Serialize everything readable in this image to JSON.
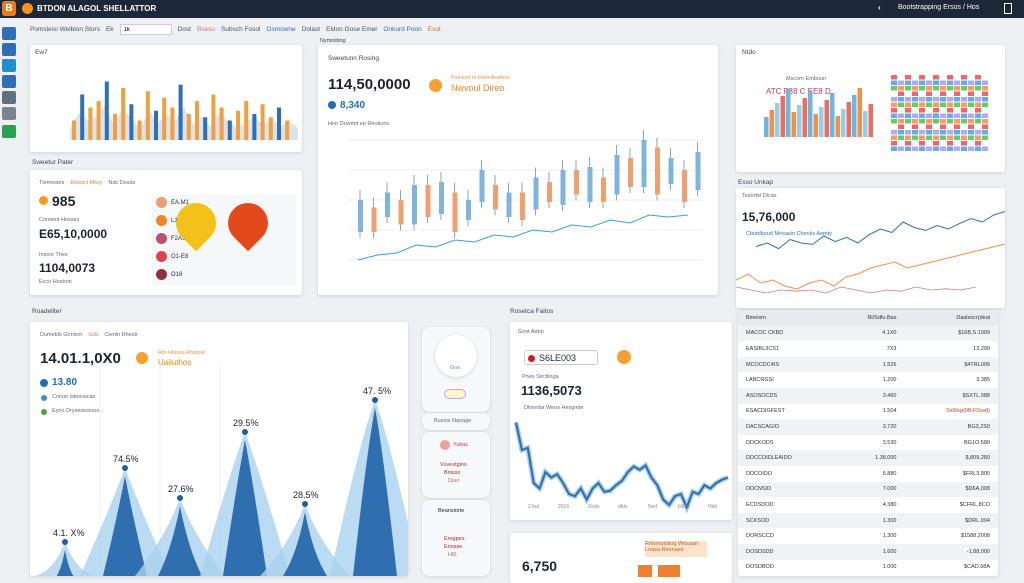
{
  "app": {
    "title": "BTDON ALAGOL SHELLATTOR",
    "user": "Bootstrapping Ersos / Hos",
    "logo": "B"
  },
  "toolbar": {
    "items": [
      "Pomsleisi Welbion Stors",
      "Ek"
    ],
    "input_value": "1k",
    "buttons": [
      "Dost",
      "Bsesu",
      "Subsch Fosol",
      "Osmowne",
      "Dolast",
      "Eldon Gose Emer",
      "Onkurd Poon",
      "Exot"
    ],
    "sub": "Nymistting"
  },
  "panel_bars": {
    "title": "Ew7",
    "bars": [
      0.3,
      0.7,
      0.5,
      0.6,
      0.9,
      0.4,
      0.8,
      0.55,
      0.3,
      0.75,
      0.45,
      0.65,
      0.5,
      0.85,
      0.4,
      0.6,
      0.35,
      0.7,
      0.5,
      0.3,
      0.45,
      0.6,
      0.4,
      0.55,
      0.35,
      0.5,
      0.3
    ],
    "colors": [
      "#f0a040",
      "#2f6fb8"
    ]
  },
  "wallet": {
    "section": "Sweetur Pater",
    "tabs": [
      "Tlemestes",
      "Etosscl Mksy",
      "Ndc Desds"
    ],
    "price1": "985",
    "label1": "Corwent Hosses",
    "price2": "E65,10,0000",
    "label2": "Inscre Thes",
    "price3": "1104,0073",
    "label3": "Ecco Hosbon",
    "coins": [
      {
        "name": "EA.M1",
        "alt": "",
        "color": "#e8a070"
      },
      {
        "name": "L1E.09",
        "alt": "",
        "color": "#f0842a"
      },
      {
        "name": "F2AS",
        "alt": "",
        "color": "#c05070"
      },
      {
        "name": "O1-E8",
        "alt": "Fa 01",
        "color": "#e04050"
      },
      {
        "name": "O16",
        "alt": "#P004",
        "color": "#903040"
      }
    ],
    "pins": [
      {
        "glyph": "I",
        "color": "#f2c21a"
      },
      {
        "glyph": "m",
        "color": "#e24a1c"
      }
    ]
  },
  "center": {
    "section": "Nymistting",
    "title": "Sweetunn Rosing",
    "price": "114,50,0000",
    "note1": "Fmcesn in Hosr Ansfers",
    "note2": "Nwvoul Direo",
    "sub": "8,340",
    "axis_label": "Hno Dowmd ep Reutions",
    "candles": [
      [
        0.3,
        0.5
      ],
      [
        0.45,
        0.3
      ],
      [
        0.4,
        0.55
      ],
      [
        0.5,
        0.35
      ],
      [
        0.35,
        0.6
      ],
      [
        0.6,
        0.4
      ],
      [
        0.42,
        0.62
      ],
      [
        0.55,
        0.3
      ],
      [
        0.38,
        0.5
      ],
      [
        0.5,
        0.7
      ],
      [
        0.6,
        0.45
      ],
      [
        0.4,
        0.55
      ],
      [
        0.55,
        0.38
      ],
      [
        0.45,
        0.65
      ],
      [
        0.62,
        0.5
      ],
      [
        0.48,
        0.7
      ],
      [
        0.7,
        0.55
      ],
      [
        0.5,
        0.72
      ],
      [
        0.65,
        0.5
      ],
      [
        0.55,
        0.8
      ],
      [
        0.78,
        0.6
      ],
      [
        0.6,
        0.9
      ],
      [
        0.85,
        0.55
      ],
      [
        0.62,
        0.78
      ],
      [
        0.7,
        0.5
      ],
      [
        0.58,
        0.82
      ]
    ],
    "trend": [
      0.15,
      0.2,
      0.22,
      0.3,
      0.28,
      0.35,
      0.33,
      0.4,
      0.38,
      0.45,
      0.43,
      0.5,
      0.48,
      0.55,
      0.52,
      0.6,
      0.58,
      0.6
    ]
  },
  "heat": {
    "title": "Ntdo",
    "subtitle": "Mscorn Emboun",
    "overlay": "ATC F38 C EE8 D"
  },
  "lines": {
    "section": "Esso Unkap",
    "title": "Tesorfel Dicas",
    "price": "15,76,000",
    "legend": "Cbutdboud Mosasin Chenks Aomty",
    "blue": [
      0.45,
      0.5,
      0.42,
      0.55,
      0.5,
      0.48,
      0.6,
      0.52,
      0.58,
      0.5,
      0.62,
      0.7,
      0.65,
      0.8,
      0.72,
      0.68,
      0.75,
      0.7,
      0.78,
      0.85,
      0.8,
      0.9,
      0.95
    ],
    "orange": [
      0.3,
      0.4,
      0.25,
      0.3,
      0.2,
      0.15,
      0.25,
      0.3,
      0.2,
      0.35,
      0.4,
      0.5,
      0.55,
      0.6,
      0.5,
      0.55,
      0.6,
      0.65,
      0.7,
      0.75,
      0.8,
      0.85,
      0.9
    ],
    "red": [
      0.35,
      0.3,
      0.25,
      0.3,
      0.28,
      0.3,
      0.25,
      0.35,
      0.3,
      0.25,
      0.3,
      0.28,
      0.35,
      0.3,
      0.32,
      0.3,
      0.35
    ]
  },
  "table": {
    "headers": [
      "Bmeism",
      "Ri/Sdfu.Bas",
      "Daslsocr(deal"
    ],
    "rows": [
      [
        "MACOC CKBD",
        "4.1X0",
        "$16B,S.1009"
      ],
      [
        "EASIBL3CS1",
        "7X3",
        "13,290"
      ],
      [
        "MCOCDC4IS",
        "1.526",
        "$4TRL006"
      ],
      [
        "LABCRGSI",
        "1.200",
        "3.385"
      ],
      [
        "ASOSOCDS",
        "3.460",
        "$SXTL.088"
      ],
      [
        "ESACDIGFEST",
        "1.504",
        "Sst0ep(0B,F0ssd)"
      ],
      [
        "DACSCAGIO",
        "3.720",
        "BG3,2S0"
      ],
      [
        "DDCKODS",
        "3.530",
        "BG1O.580"
      ],
      [
        "DDCCOIDLEAIDO",
        "1.38,000",
        "$,809,280"
      ],
      [
        "DDCOIDO",
        "5.880",
        "$FRL3,800"
      ],
      [
        "DDCNSID",
        "7.000",
        "$D6A,008"
      ],
      [
        "ECDSDOD",
        "4.380",
        "$CFRL,8CO"
      ],
      [
        "SCKSOD",
        "1.300",
        "$DRL.004"
      ],
      [
        "DORSCCD",
        "1.300",
        "$1588,2008"
      ],
      [
        "DOSDSDD",
        "1.600",
        "-1,88,000"
      ],
      [
        "DOSDBOD",
        "1.000",
        "$CAD.68A"
      ]
    ],
    "highlight_row": 5
  },
  "mountain": {
    "section": "Roadeliter",
    "tabs": [
      "Dumebls Gonlsm",
      "Gsb",
      "Cemln Rhestr"
    ],
    "price": "14.01.1,0X0",
    "note1": "Rtn Hnisss Rhstnal",
    "note2": "Uailuthos",
    "sub": "13.80",
    "leg1": "Corsst Iskonaicas",
    "leg2": "Eyno Drysesesiono",
    "peaks": [
      {
        "label": "4.1. X%",
        "v": 0.05
      },
      {
        "label": "74.5%",
        "v": 0.42
      },
      {
        "label": "27.6%",
        "v": 0.27
      },
      {
        "label": "29.5%",
        "v": 0.6
      },
      {
        "label": "28.5%",
        "v": 0.24
      },
      {
        "label": "47. 5%",
        "v": 0.76
      }
    ]
  },
  "mini": {
    "card1": "Gos",
    "card2": "Busins Nanage",
    "card3_title": "Yukas",
    "card3_lines": [
      "Vuvestgins",
      "Bnisss",
      "Dser"
    ],
    "card4_title": "Beansiorte",
    "card4_lines": [
      "Eregpes",
      "Enosse",
      "Ht5"
    ]
  },
  "spark": {
    "section": "Rosetca Faitos",
    "title": "Gost Adep",
    "badge": "S6LE003",
    "label": "Pnes Sirctlinga",
    "price": "1136,5073",
    "note": "Dlonnba Weos Hesgirde",
    "line": [
      0.95,
      0.7,
      0.72,
      0.4,
      0.35,
      0.5,
      0.45,
      0.48,
      0.4,
      0.3,
      0.28,
      0.35,
      0.25,
      0.35,
      0.4,
      0.32,
      0.33,
      0.38,
      0.42,
      0.5,
      0.55,
      0.52,
      0.56,
      0.45,
      0.38,
      0.25,
      0.2,
      0.28,
      0.3,
      0.18,
      0.32,
      0.3,
      0.38,
      0.35,
      0.4,
      0.43,
      0.45
    ],
    "ticks": [
      "2 bal",
      "2016",
      "Zedo",
      "dtdo",
      "Ned",
      "b9dd",
      "Hdd"
    ]
  },
  "bottom": {
    "price": "6,750",
    "tag": "Rnlsmalstiog Wosaan Lnasa Reonaes"
  }
}
